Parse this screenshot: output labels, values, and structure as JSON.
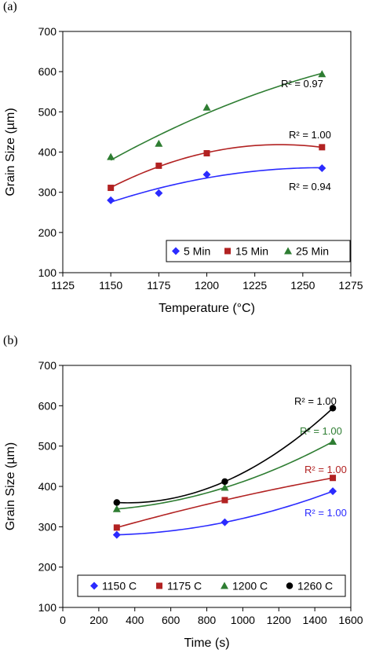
{
  "panels": {
    "a": "(a)",
    "b": "(b)"
  },
  "chart_data": [
    {
      "type": "scatter",
      "xlabel": "Temperature (°C)",
      "ylabel": "Grain Size (µm)",
      "xlim": [
        1125,
        1275
      ],
      "ylim": [
        100,
        700
      ],
      "xticks": [
        1125,
        1150,
        1175,
        1200,
        1225,
        1250,
        1275
      ],
      "yticks": [
        100,
        200,
        300,
        400,
        500,
        600,
        700
      ],
      "x": [
        1150,
        1175,
        1200,
        1260
      ],
      "series": [
        {
          "name": "5 Min",
          "marker": "diamond",
          "color": "#2b2bff",
          "values": [
            280,
            298,
            344,
            360
          ],
          "r2": "R² = 0.94"
        },
        {
          "name": "15 Min",
          "marker": "square",
          "color": "#b22222",
          "values": [
            311,
            366,
            397,
            412
          ],
          "r2": "R² = 1.00"
        },
        {
          "name": "25 Min",
          "marker": "triangle",
          "color": "#2e7d32",
          "values": [
            388,
            421,
            511,
            594
          ],
          "r2": "R² = 0.97"
        }
      ],
      "legend": "bottom-right",
      "grid": false
    },
    {
      "type": "scatter",
      "xlabel": "Time (s)",
      "ylabel": "Grain Size (µm)",
      "xlim": [
        0,
        1600
      ],
      "ylim": [
        100,
        700
      ],
      "xticks": [
        0,
        200,
        400,
        600,
        800,
        1000,
        1200,
        1400,
        1600
      ],
      "yticks": [
        100,
        200,
        300,
        400,
        500,
        600,
        700
      ],
      "x": [
        300,
        900,
        1500
      ],
      "series": [
        {
          "name": "1150 C",
          "marker": "diamond",
          "color": "#2b2bff",
          "values": [
            280,
            311,
            388
          ],
          "r2": "R² = 1.00"
        },
        {
          "name": "1175 C",
          "marker": "square",
          "color": "#b22222",
          "values": [
            298,
            366,
            421
          ],
          "r2": "R² = 1.00"
        },
        {
          "name": "1200 C",
          "marker": "triangle",
          "color": "#2e7d32",
          "values": [
            344,
            397,
            511
          ],
          "r2": "R² = 1.00"
        },
        {
          "name": "1260 C",
          "marker": "circle",
          "color": "#000000",
          "values": [
            360,
            412,
            594
          ],
          "r2": "R² = 1.00"
        }
      ],
      "legend": "bottom",
      "grid": false
    }
  ]
}
